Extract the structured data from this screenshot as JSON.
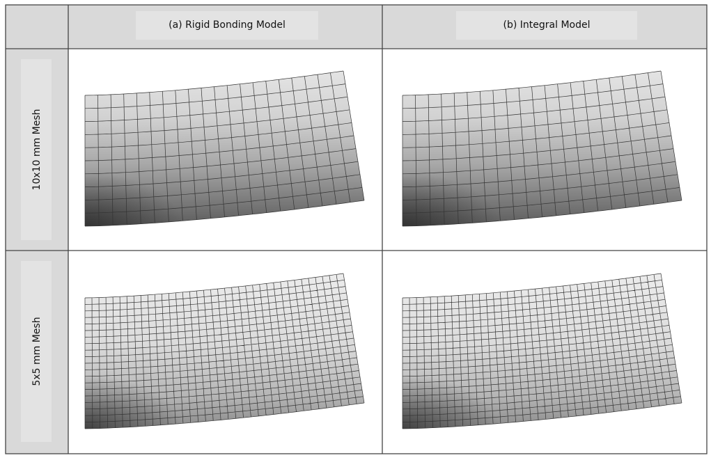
{
  "header": {
    "columns": [
      "(a) Rigid Bonding Model",
      "(b) Integral Model"
    ]
  },
  "rows": [
    {
      "label": "10x10 mm Mesh"
    },
    {
      "label": "5x5 mm Mesh"
    }
  ]
}
